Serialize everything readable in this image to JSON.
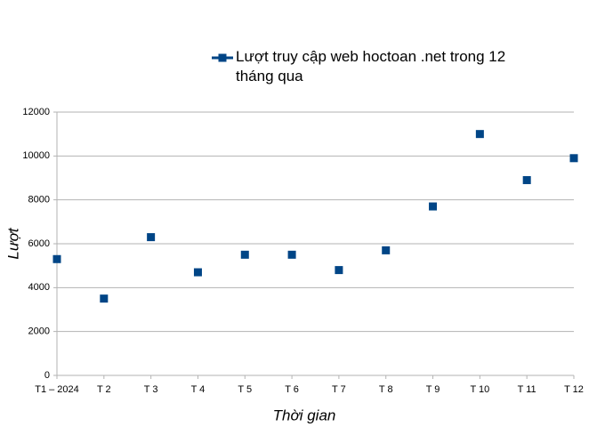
{
  "chart_data": {
    "type": "line",
    "legend_label": "Lượt truy cập web hoctoan .net trong 12 tháng qua",
    "x_label": "Thời gian",
    "y_label": "Lượt",
    "categories": [
      "T1 – 2024",
      "T 2",
      "T 3",
      "T 4",
      "T 5",
      "T 6",
      "T 7",
      "T 8",
      "T 9",
      "T 10",
      "T 11",
      "T 12"
    ],
    "series": [
      {
        "name": "Lượt truy cập web hoctoan .net trong 12 tháng qua",
        "color": "#004586",
        "values": [
          5300,
          3500,
          6300,
          4700,
          5500,
          5500,
          4800,
          5700,
          7700,
          11000,
          8900,
          9900
        ]
      }
    ],
    "ylim": [
      0,
      12000
    ],
    "yticks": [
      0,
      2000,
      4000,
      6000,
      8000,
      10000,
      12000
    ],
    "grid": true
  }
}
